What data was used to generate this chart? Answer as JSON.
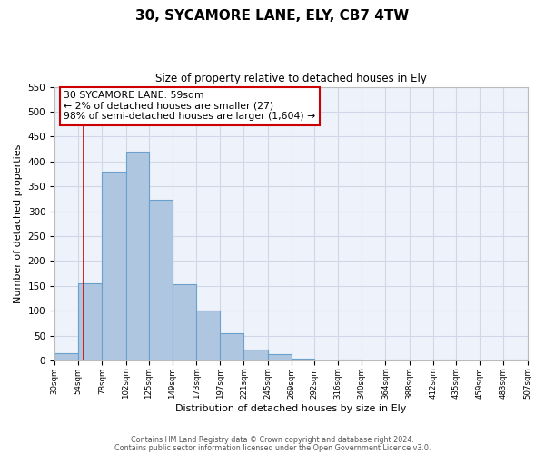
{
  "title": "30, SYCAMORE LANE, ELY, CB7 4TW",
  "subtitle": "Size of property relative to detached houses in Ely",
  "xlabel": "Distribution of detached houses by size in Ely",
  "ylabel": "Number of detached properties",
  "bin_edges": [
    30,
    54,
    78,
    102,
    125,
    149,
    173,
    197,
    221,
    245,
    269,
    292,
    316,
    340,
    364,
    388,
    412,
    435,
    459,
    483,
    507
  ],
  "bar_heights": [
    15,
    155,
    380,
    420,
    323,
    153,
    100,
    55,
    22,
    12,
    3,
    0,
    2,
    0,
    1,
    0,
    1,
    0,
    0,
    2
  ],
  "bar_color": "#aec6e0",
  "bar_edge_color": "#6aa0cc",
  "grid_color": "#d0d8e8",
  "background_color": "#eef2fa",
  "vline_x": 59,
  "vline_color": "#cc0000",
  "annotation_box_text": "30 SYCAMORE LANE: 59sqm\n← 2% of detached houses are smaller (27)\n98% of semi-detached houses are larger (1,604) →",
  "annotation_box_color": "#cc0000",
  "footer_line1": "Contains HM Land Registry data © Crown copyright and database right 2024.",
  "footer_line2": "Contains public sector information licensed under the Open Government Licence v3.0.",
  "ylim": [
    0,
    550
  ],
  "yticks": [
    0,
    50,
    100,
    150,
    200,
    250,
    300,
    350,
    400,
    450,
    500,
    550
  ],
  "tick_labels": [
    "30sqm",
    "54sqm",
    "78sqm",
    "102sqm",
    "125sqm",
    "149sqm",
    "173sqm",
    "197sqm",
    "221sqm",
    "245sqm",
    "269sqm",
    "292sqm",
    "316sqm",
    "340sqm",
    "364sqm",
    "388sqm",
    "412sqm",
    "435sqm",
    "459sqm",
    "483sqm",
    "507sqm"
  ]
}
